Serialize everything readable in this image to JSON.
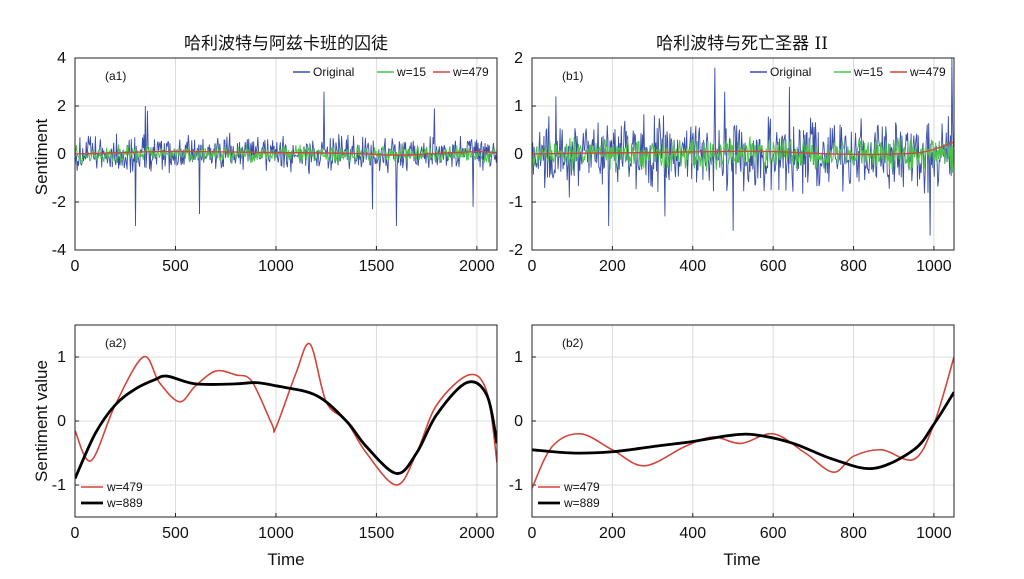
{
  "chart_data": [
    {
      "type": "line",
      "panel_label": "(a1)",
      "title": "哈利波特与阿兹卡班的囚徒",
      "ylabel": "Sentiment",
      "xlabel": "",
      "xlim": [
        0,
        2100
      ],
      "ylim": [
        -4,
        4
      ],
      "xticks": [
        "0",
        "500",
        "1000",
        "1500",
        "2000"
      ],
      "yticks": [
        "-4",
        "-2",
        "0",
        "2",
        "4"
      ],
      "grid": true,
      "legend_position": "top-right",
      "series": [
        {
          "name": "Original",
          "color": "#3a4fa8",
          "style": "noisy",
          "noise_amplitude": 0.75,
          "spikes": [
            [
              350,
              2.0
            ],
            [
              360,
              1.8
            ],
            [
              300,
              -3.0
            ],
            [
              1240,
              2.6
            ],
            [
              1600,
              -3.0
            ],
            [
              1790,
              1.9
            ],
            [
              1480,
              -2.3
            ],
            [
              620,
              -2.5
            ],
            [
              1980,
              -2.2
            ]
          ]
        },
        {
          "name": "w=15",
          "color": "#4cc34c",
          "style": "noisy",
          "noise_amplitude": 0.32,
          "spikes": []
        },
        {
          "name": "w=479",
          "color": "#d2453a",
          "x": [
            0,
            200,
            400,
            600,
            800,
            1000,
            1200,
            1400,
            1600,
            1800,
            2000,
            2100
          ],
          "y": [
            0.0,
            0.05,
            0.1,
            0.1,
            0.08,
            0.06,
            0.05,
            0.02,
            -0.05,
            0.02,
            0.1,
            0.05
          ]
        }
      ]
    },
    {
      "type": "line",
      "panel_label": "(b1)",
      "title": "哈利波特与死亡圣器 II",
      "ylabel": "",
      "xlabel": "",
      "xlim": [
        0,
        1050
      ],
      "ylim": [
        -2,
        2
      ],
      "xticks": [
        "0",
        "200",
        "400",
        "600",
        "800",
        "1000"
      ],
      "yticks": [
        "-2",
        "-1",
        "0",
        "1",
        "2"
      ],
      "grid": true,
      "legend_position": "top-right",
      "series": [
        {
          "name": "Original",
          "color": "#3a4fa8",
          "style": "noisy",
          "noise_amplitude": 0.7,
          "spikes": [
            [
              455,
              1.8
            ],
            [
              480,
              1.3
            ],
            [
              1045,
              2.0
            ],
            [
              500,
              -1.6
            ],
            [
              990,
              -1.7
            ],
            [
              190,
              -1.5
            ],
            [
              330,
              -1.3
            ],
            [
              640,
              1.4
            ],
            [
              60,
              1.2
            ]
          ]
        },
        {
          "name": "w=15",
          "color": "#4cc34c",
          "style": "noisy",
          "noise_amplitude": 0.32,
          "spikes": []
        },
        {
          "name": "w=479",
          "color": "#d2453a",
          "x": [
            0,
            150,
            300,
            450,
            600,
            750,
            900,
            980,
            1050
          ],
          "y": [
            0.0,
            0.02,
            0.03,
            0.05,
            0.05,
            0.0,
            0.0,
            0.05,
            0.25
          ]
        }
      ]
    },
    {
      "type": "line",
      "panel_label": "(a2)",
      "title": "",
      "ylabel": "Sentiment value",
      "xlabel": "Time",
      "xlim": [
        0,
        2100
      ],
      "ylim": [
        -1.5,
        1.5
      ],
      "xticks": [
        "0",
        "500",
        "1000",
        "1500",
        "2000"
      ],
      "yticks": [
        "-1",
        "0",
        "1"
      ],
      "grid": true,
      "legend_position": "bottom-left",
      "series": [
        {
          "name": "w=479",
          "color": "#d2453a",
          "x": [
            0,
            80,
            200,
            340,
            420,
            520,
            600,
            700,
            800,
            880,
            980,
            1000,
            1100,
            1170,
            1250,
            1350,
            1450,
            1600,
            1700,
            1800,
            1960,
            2050,
            2100
          ],
          "y": [
            -0.15,
            -0.62,
            0.25,
            1.0,
            0.6,
            0.3,
            0.55,
            0.78,
            0.72,
            0.62,
            -0.05,
            -0.1,
            0.75,
            1.2,
            0.3,
            0.0,
            -0.5,
            -1.0,
            -0.5,
            0.25,
            0.72,
            0.45,
            -0.65
          ]
        },
        {
          "name": "w=889",
          "color": "#000000",
          "x": [
            0,
            100,
            200,
            300,
            400,
            460,
            600,
            800,
            900,
            1000,
            1200,
            1350,
            1450,
            1600,
            1700,
            1800,
            1950,
            2050,
            2100
          ],
          "y": [
            -0.9,
            -0.2,
            0.25,
            0.5,
            0.65,
            0.7,
            0.58,
            0.58,
            0.6,
            0.55,
            0.4,
            0.0,
            -0.4,
            -0.82,
            -0.5,
            0.1,
            0.6,
            0.4,
            -0.35
          ]
        }
      ]
    },
    {
      "type": "line",
      "panel_label": "(b2)",
      "title": "",
      "ylabel": "",
      "xlabel": "Time",
      "xlim": [
        0,
        1050
      ],
      "ylim": [
        -1.5,
        1.5
      ],
      "xticks": [
        "0",
        "200",
        "400",
        "600",
        "800",
        "1000"
      ],
      "yticks": [
        "-1",
        "0",
        "1"
      ],
      "grid": true,
      "legend_position": "bottom-left",
      "series": [
        {
          "name": "w=479",
          "color": "#d2453a",
          "x": [
            0,
            50,
            120,
            200,
            280,
            380,
            450,
            520,
            600,
            680,
            750,
            800,
            870,
            950,
            1000,
            1050
          ],
          "y": [
            -1.05,
            -0.4,
            -0.2,
            -0.45,
            -0.7,
            -0.4,
            -0.25,
            -0.35,
            -0.2,
            -0.5,
            -0.8,
            -0.55,
            -0.45,
            -0.6,
            -0.05,
            1.0
          ]
        },
        {
          "name": "w=889",
          "color": "#000000",
          "x": [
            0,
            100,
            200,
            300,
            400,
            500,
            560,
            650,
            750,
            850,
            950,
            1000,
            1050
          ],
          "y": [
            -0.45,
            -0.5,
            -0.48,
            -0.4,
            -0.32,
            -0.22,
            -0.22,
            -0.35,
            -0.6,
            -0.74,
            -0.45,
            -0.05,
            0.45
          ]
        }
      ]
    }
  ]
}
